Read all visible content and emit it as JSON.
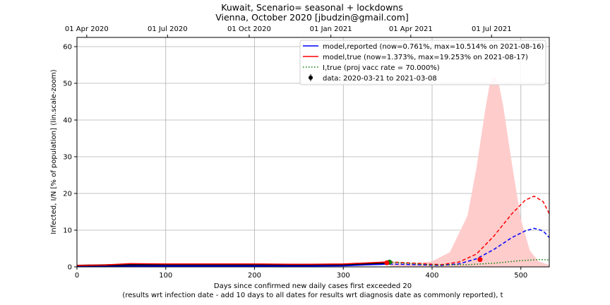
{
  "chart_data": {
    "type": "line",
    "title": "Kuwait, Scenario= seasonal + lockdowns",
    "subtitle": "Vienna, October 2020 [jbudzin@gmail.com]",
    "xlabel": "Days since confirmed new daily cases first exceeded 20",
    "xlabel2": "(results wrt infection date - add 10 days to all dates for results wrt diagnosis date as commonly reported), t",
    "ylabel": "Infected, I/N [% of population] (lin.scale-zoom)",
    "xlim": [
      0,
      532
    ],
    "ylim": [
      0,
      62.5
    ],
    "xticks": [
      0,
      100,
      200,
      300,
      400,
      500
    ],
    "yticks": [
      0,
      10,
      20,
      30,
      40,
      50,
      60
    ],
    "top_axis": [
      {
        "day": 11,
        "label": "01 Apr 2020"
      },
      {
        "day": 102,
        "label": "01 Jul 2020"
      },
      {
        "day": 194,
        "label": "01 Oct 2020"
      },
      {
        "day": 286,
        "label": "01 Jan 2021"
      },
      {
        "day": 376,
        "label": "01 Apr 2021"
      },
      {
        "day": 467,
        "label": "01 Jul 2021"
      }
    ],
    "grid": true,
    "legend_position": "top-right",
    "legend": [
      {
        "label": "model,reported (now=0.761%, max=10.514% on 2021-08-16)",
        "color": "#0000ff",
        "style": "solid"
      },
      {
        "label": "model,true (now=1.373%, max=19.253% on 2021-08-17)",
        "color": "#ff0000",
        "style": "solid"
      },
      {
        "label": "I,true (proj vacc rate = 70.000%)",
        "color": "#008000",
        "style": "dotted"
      },
      {
        "label": "data: 2020-03-21 to 2021-03-08",
        "color": "#000000",
        "style": "marker"
      }
    ],
    "series": [
      {
        "name": "data",
        "color": "#000000",
        "x": [
          0,
          30,
          60,
          100,
          150,
          200,
          250,
          300,
          352
        ],
        "y": [
          0.3,
          0.4,
          0.6,
          0.6,
          0.6,
          0.6,
          0.55,
          0.6,
          0.9
        ]
      },
      {
        "name": "model,reported fit",
        "color": "#0000ff",
        "x": [
          0,
          30,
          60,
          100,
          150,
          200,
          250,
          300,
          352
        ],
        "y": [
          0.05,
          0.1,
          0.2,
          0.25,
          0.25,
          0.25,
          0.22,
          0.3,
          0.76
        ]
      },
      {
        "name": "model,true fit",
        "color": "#ff0000",
        "x": [
          0,
          30,
          60,
          100,
          150,
          200,
          250,
          300,
          352
        ],
        "y": [
          0.4,
          0.5,
          0.9,
          0.8,
          0.8,
          0.8,
          0.7,
          0.8,
          1.37
        ]
      },
      {
        "name": "model,reported projection",
        "color": "#0000ff",
        "style": "dashed",
        "x": [
          352,
          380,
          410,
          430,
          450,
          470,
          490,
          505,
          515,
          525,
          532
        ],
        "y": [
          0.76,
          0.6,
          0.4,
          0.8,
          2.2,
          4.8,
          8.0,
          9.8,
          10.5,
          9.8,
          8.0
        ]
      },
      {
        "name": "model,true projection",
        "color": "#ff0000",
        "style": "dashed",
        "x": [
          352,
          380,
          410,
          430,
          450,
          470,
          490,
          505,
          515,
          525,
          532
        ],
        "y": [
          1.37,
          1.0,
          0.6,
          1.3,
          3.5,
          8.5,
          14.5,
          18.2,
          19.25,
          17.8,
          14.5
        ]
      },
      {
        "name": "I,true vacc",
        "color": "#008000",
        "style": "dotted",
        "x": [
          352,
          400,
          440,
          470,
          500,
          520,
          532
        ],
        "y": [
          1.3,
          0.5,
          0.6,
          1.0,
          1.7,
          2.0,
          1.9
        ]
      },
      {
        "name": "uncertainty band",
        "color": "#ffcccc",
        "style": "area",
        "x": [
          352,
          380,
          400,
          420,
          440,
          450,
          460,
          465,
          470,
          475,
          480,
          490,
          500,
          510,
          520,
          532
        ],
        "y": [
          1.5,
          1.0,
          1.5,
          4.0,
          14.0,
          27.0,
          43.0,
          50.0,
          52.0,
          50.0,
          44.0,
          28.0,
          13.0,
          4.5,
          1.5,
          0.5
        ]
      }
    ],
    "markers": [
      {
        "x": 352,
        "y": 1.3,
        "color": "#008000"
      },
      {
        "x": 349,
        "y": 1.1,
        "color": "#ff0000"
      },
      {
        "x": 454,
        "y": 2.0,
        "color": "#ff0000"
      }
    ]
  }
}
